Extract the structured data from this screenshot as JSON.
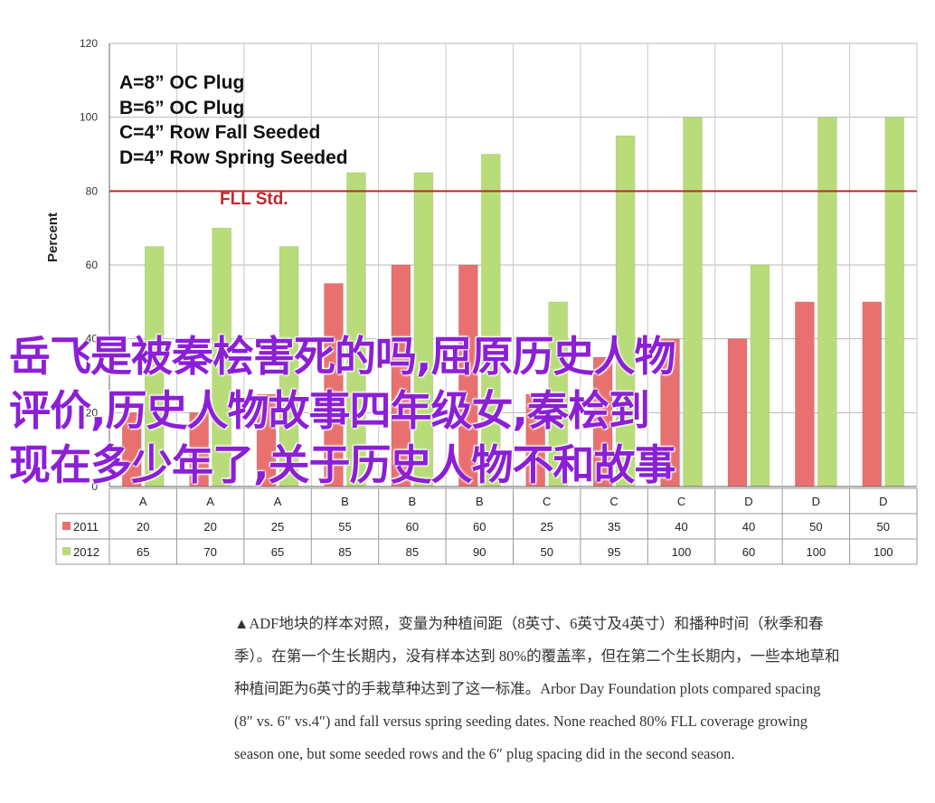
{
  "chart_data": {
    "type": "bar",
    "ylabel": "Percent",
    "ylim": [
      0,
      120
    ],
    "yticks": [
      0,
      20,
      40,
      60,
      80,
      100,
      120
    ],
    "categories": [
      "A",
      "A",
      "A",
      "B",
      "B",
      "B",
      "C",
      "C",
      "C",
      "D",
      "D",
      "D"
    ],
    "series": [
      {
        "name": "2011",
        "color": "#e8706e",
        "values": [
          20,
          20,
          25,
          55,
          60,
          60,
          25,
          35,
          40,
          40,
          50,
          50
        ]
      },
      {
        "name": "2012",
        "color": "#b9dc7a",
        "values": [
          65,
          70,
          65,
          85,
          85,
          90,
          50,
          95,
          100,
          60,
          100,
          100
        ]
      }
    ],
    "reference_line": {
      "label": "FLL Std.",
      "value": 80,
      "color": "#c0282a"
    },
    "legend_notes": [
      "A=8” OC Plug",
      "B=6” OC Plug",
      "C=4” Row Fall Seeded",
      "D=4” Row Spring Seeded"
    ],
    "grid": true,
    "data_table": true
  },
  "overlay_title_lines": [
    "岳飞是被秦桧害死的吗,屈原历史人物",
    "评价,历史人物故事四年级女,秦桧到",
    "现在多少年了,关于历史人物不和故事"
  ],
  "caption_lines": [
    "▲ADF地块的样本对照，变量为种植间距（8英寸、6英寸及4英寸）和播种时间（秋季和春",
    "季）。在第一个生长期内，没有样本达到 80%的覆盖率，但在第二个生长期内，一些本地草和",
    "种植间距为6英寸的手栽草种达到了这一标准。Arbor Day Foundation plots compared spacing",
    "(8″ vs. 6″ vs.4″) and fall versus spring seeding dates. None reached 80% FLL coverage growing",
    "season one, but some seeded rows and the 6″ plug spacing did in the second season."
  ]
}
